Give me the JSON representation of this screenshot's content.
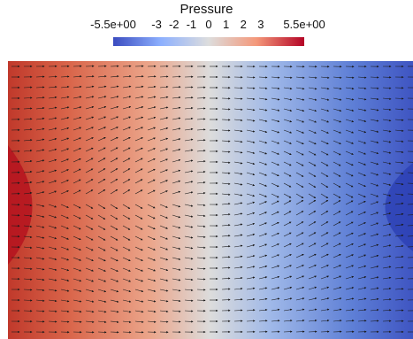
{
  "legend": {
    "title": "Pressure",
    "ticks": [
      "-5.5e+00",
      "-3",
      "-2",
      "-1",
      "0",
      "1",
      "2",
      "3",
      "5.5e+00"
    ],
    "tick_values": [
      -5.5,
      -3,
      -2,
      -1,
      0,
      1,
      2,
      3,
      5.5
    ],
    "range": [
      -5.5,
      5.5
    ],
    "colormap": [
      "#3b4cc0",
      "#dddddd",
      "#b40426"
    ]
  },
  "field": {
    "variable": "Pressure",
    "high_side": "left",
    "low_side": "right",
    "glyph": "arrow",
    "glyph_color": "#1a1a1a"
  }
}
